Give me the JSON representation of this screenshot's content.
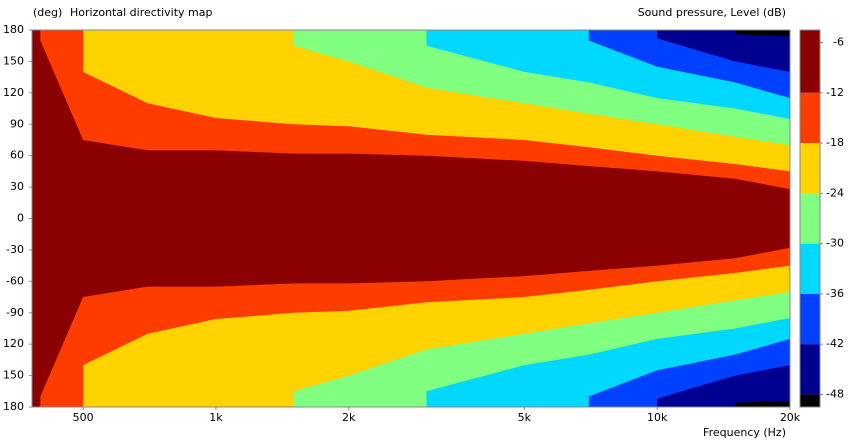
{
  "chart_data": {
    "type": "contour",
    "title": "Horizontal directivity map",
    "y_label": "(deg)",
    "x_label": "Frequency  (Hz)",
    "colorbar_label": "Sound pressure, Level  (dB)",
    "log_x": true,
    "xlim": [
      383,
      20000
    ],
    "xticks": [
      {
        "value": 500,
        "label": "500"
      },
      {
        "value": 1000,
        "label": "1k"
      },
      {
        "value": 2000,
        "label": "2k"
      },
      {
        "value": 5000,
        "label": "5k"
      },
      {
        "value": 10000,
        "label": "10k"
      },
      {
        "value": 20000,
        "label": "20k"
      }
    ],
    "ylim": [
      -180,
      180
    ],
    "yticks": [
      180,
      150,
      120,
      90,
      60,
      30,
      0,
      -30,
      -60,
      -90,
      {
        "value": -120,
        "label": "120"
      },
      {
        "value": -150,
        "label": "150"
      },
      {
        "value": -180,
        "label": "180"
      }
    ],
    "zlim": [
      -4.5,
      -49.5
    ],
    "zticks": [
      -6,
      -12,
      -18,
      -24,
      -30,
      -36,
      -42,
      -48
    ],
    "background_color": "#8b0000",
    "x": [
      400,
      500,
      700,
      1000,
      1500,
      2000,
      3000,
      5000,
      7000,
      10000,
      15000,
      20000
    ],
    "series": [
      {
        "level": -12,
        "color": "#ff3c00",
        "values": [
          170,
          75,
          65,
          65,
          62,
          62,
          60,
          55,
          50,
          45,
          38,
          28
        ]
      },
      {
        "level": -18,
        "color": "#ffd200",
        "values": [
          null,
          140,
          110,
          96,
          90,
          88,
          80,
          75,
          68,
          60,
          52,
          45
        ]
      },
      {
        "level": -24,
        "color": "#80ff80",
        "values": [
          null,
          null,
          null,
          null,
          165,
          150,
          125,
          110,
          100,
          90,
          78,
          70
        ]
      },
      {
        "level": -30,
        "color": "#00d8ff",
        "values": [
          null,
          null,
          null,
          null,
          null,
          null,
          165,
          140,
          130,
          115,
          105,
          95
        ]
      },
      {
        "level": -36,
        "color": "#0040ff",
        "values": [
          null,
          null,
          null,
          null,
          null,
          null,
          null,
          null,
          170,
          145,
          130,
          115
        ]
      },
      {
        "level": -42,
        "color": "#000090",
        "values": [
          null,
          null,
          null,
          null,
          null,
          null,
          null,
          null,
          null,
          172,
          150,
          140
        ]
      },
      {
        "level": -48,
        "color": "#000000",
        "values": [
          null,
          null,
          null,
          null,
          null,
          null,
          null,
          null,
          null,
          null,
          176,
          174
        ]
      }
    ]
  }
}
